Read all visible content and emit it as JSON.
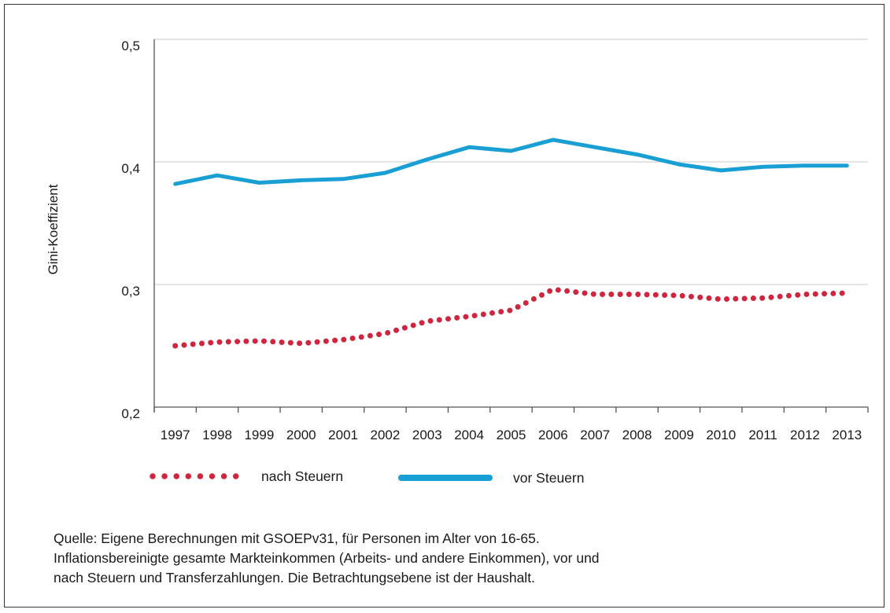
{
  "chart_data": {
    "type": "line",
    "ylabel": "Gini-Koeffizient",
    "xlabel": "",
    "ylim": [
      0.2,
      0.5
    ],
    "y_ticks": [
      "0,2",
      "0,3",
      "0,4",
      "0,5"
    ],
    "y_tick_values": [
      0.2,
      0.3,
      0.4,
      0.5
    ],
    "categories": [
      "1997",
      "1998",
      "1999",
      "2000",
      "2001",
      "2002",
      "2003",
      "2004",
      "2005",
      "2006",
      "2007",
      "2008",
      "2009",
      "2010",
      "2011",
      "2012",
      "2013"
    ],
    "grid": "horizontal",
    "legend_position": "bottom",
    "series": [
      {
        "name": "nach Steuern",
        "style": "dotted",
        "color": "#d0253e",
        "values": [
          0.25,
          0.253,
          0.254,
          0.252,
          0.255,
          0.26,
          0.27,
          0.274,
          0.279,
          0.296,
          0.292,
          0.292,
          0.291,
          0.288,
          0.289,
          0.292,
          0.293
        ]
      },
      {
        "name": "vor Steuern",
        "style": "solid",
        "color": "#1a9fd4",
        "values": [
          0.382,
          0.389,
          0.383,
          0.385,
          0.386,
          0.391,
          0.402,
          0.412,
          0.409,
          0.418,
          0.412,
          0.406,
          0.398,
          0.393,
          0.396,
          0.397,
          0.397
        ]
      }
    ]
  },
  "source_lines": [
    "Quelle: Eigene Berechnungen mit GSOEPv31, für Personen im Alter von 16-65.",
    "Inflationsbereinigte gesamte Markteinkommen (Arbeits- und andere Einkommen), vor und",
    "nach Steuern und Transferzahlungen. Die Betrachtungsebene ist der Haushalt."
  ]
}
